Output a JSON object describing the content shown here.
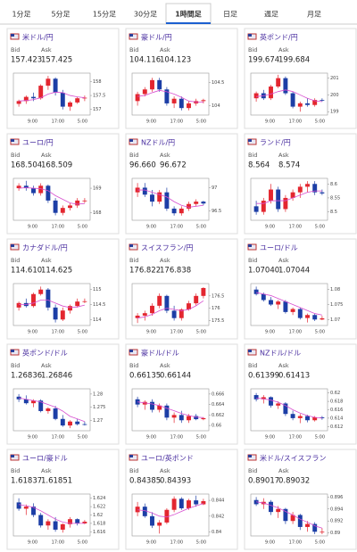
{
  "tabs": [
    "1分足",
    "5分足",
    "15分足",
    "30分足",
    "1時間足",
    "日足",
    "週足",
    "月足"
  ],
  "active_tab": 4,
  "up_color": "#e3262f",
  "down_color": "#1c3ea6",
  "ma_color": "#d84fd0",
  "bid_label": "Bid",
  "ask_label": "Ask",
  "x_labels": [
    "9:00",
    "17:00",
    "5:00"
  ],
  "cards": [
    {
      "name": "米ドル/円",
      "bid": "157.423",
      "ask": "157.425",
      "ylim": [
        156.8,
        158.3
      ],
      "yticks": [
        157,
        157.5,
        158
      ],
      "candles": [
        [
          157.2,
          157.35,
          157.1,
          157.3
        ],
        [
          157.3,
          157.5,
          157.2,
          157.45
        ],
        [
          157.45,
          157.6,
          157.3,
          157.4
        ],
        [
          157.4,
          157.9,
          157.35,
          157.85
        ],
        [
          157.85,
          158.2,
          157.7,
          158.1
        ],
        [
          158.1,
          158.15,
          157.5,
          157.6
        ],
        [
          157.6,
          157.7,
          157.0,
          157.1
        ],
        [
          157.1,
          157.3,
          156.95,
          157.25
        ],
        [
          157.25,
          157.45,
          157.2,
          157.4
        ],
        [
          157.4,
          157.5,
          157.3,
          157.42
        ]
      ],
      "ma": [
        157.3,
        157.32,
        157.35,
        157.42,
        157.55,
        157.62,
        157.6,
        157.5,
        157.45,
        157.42
      ]
    },
    {
      "name": "豪ドル/円",
      "bid": "104.116",
      "ask": "104.123",
      "ylim": [
        103.8,
        104.7
      ],
      "yticks": [
        104,
        104.5
      ],
      "candles": [
        [
          104.1,
          104.3,
          104.0,
          104.25
        ],
        [
          104.25,
          104.4,
          104.2,
          104.35
        ],
        [
          104.35,
          104.6,
          104.3,
          104.55
        ],
        [
          104.55,
          104.6,
          104.3,
          104.35
        ],
        [
          104.35,
          104.4,
          104.0,
          104.05
        ],
        [
          104.05,
          104.2,
          103.95,
          104.15
        ],
        [
          104.15,
          104.2,
          103.9,
          103.95
        ],
        [
          103.95,
          104.1,
          103.9,
          104.05
        ],
        [
          104.05,
          104.15,
          104.0,
          104.1
        ],
        [
          104.1,
          104.15,
          104.05,
          104.12
        ]
      ],
      "ma": [
        104.2,
        104.22,
        104.28,
        104.33,
        104.3,
        104.25,
        104.18,
        104.1,
        104.08,
        104.08
      ]
    },
    {
      "name": "英ポンド/円",
      "bid": "199.674",
      "ask": "199.684",
      "ylim": [
        198.8,
        201.3
      ],
      "yticks": [
        199,
        200,
        201
      ],
      "candles": [
        [
          199.8,
          200.2,
          199.6,
          200.1
        ],
        [
          200.1,
          200.3,
          199.7,
          199.8
        ],
        [
          199.8,
          200.6,
          199.7,
          200.5
        ],
        [
          200.5,
          201.2,
          200.4,
          201.0
        ],
        [
          201.0,
          201.1,
          200.0,
          200.1
        ],
        [
          200.1,
          200.2,
          199.2,
          199.3
        ],
        [
          199.3,
          199.6,
          199.0,
          199.5
        ],
        [
          199.5,
          199.8,
          199.3,
          199.4
        ],
        [
          199.4,
          199.8,
          199.3,
          199.7
        ],
        [
          199.7,
          199.8,
          199.6,
          199.67
        ]
      ],
      "ma": [
        199.9,
        199.95,
        200.05,
        200.2,
        200.3,
        200.2,
        200.0,
        199.8,
        199.65,
        199.6
      ]
    },
    {
      "name": "ユーロ/円",
      "bid": "168.504",
      "ask": "168.509",
      "ylim": [
        167.7,
        169.4
      ],
      "yticks": [
        168,
        169
      ],
      "candles": [
        [
          169.0,
          169.2,
          168.9,
          169.1
        ],
        [
          169.1,
          169.3,
          168.9,
          169.0
        ],
        [
          169.0,
          169.1,
          168.7,
          168.8
        ],
        [
          168.8,
          169.2,
          168.7,
          169.1
        ],
        [
          169.1,
          169.15,
          168.4,
          168.5
        ],
        [
          168.5,
          168.6,
          167.9,
          168.0
        ],
        [
          168.0,
          168.3,
          167.9,
          168.2
        ],
        [
          168.2,
          168.4,
          168.1,
          168.3
        ],
        [
          168.3,
          168.6,
          168.2,
          168.5
        ],
        [
          168.5,
          168.6,
          168.4,
          168.5
        ]
      ],
      "ma": [
        169.0,
        169.02,
        169.0,
        168.98,
        168.9,
        168.7,
        168.55,
        168.4,
        168.35,
        168.38
      ]
    },
    {
      "name": "NZドル/円",
      "bid": "96.660",
      "ask": "96.672",
      "ylim": [
        96.3,
        97.2
      ],
      "yticks": [
        96.5,
        97
      ],
      "candles": [
        [
          96.9,
          97.1,
          96.8,
          97.0
        ],
        [
          97.0,
          97.1,
          96.8,
          96.85
        ],
        [
          96.85,
          96.95,
          96.6,
          96.7
        ],
        [
          96.7,
          96.95,
          96.65,
          96.9
        ],
        [
          96.9,
          97.0,
          96.5,
          96.55
        ],
        [
          96.55,
          96.6,
          96.4,
          96.45
        ],
        [
          96.45,
          96.6,
          96.4,
          96.55
        ],
        [
          96.55,
          96.7,
          96.5,
          96.65
        ],
        [
          96.65,
          96.75,
          96.6,
          96.7
        ],
        [
          96.7,
          96.72,
          96.62,
          96.66
        ]
      ],
      "ma": [
        96.95,
        96.95,
        96.9,
        96.85,
        96.8,
        96.7,
        96.62,
        96.58,
        96.6,
        96.62
      ]
    },
    {
      "name": "ランド/円",
      "bid": "8.564",
      "ask": "8.574",
      "ylim": [
        8.47,
        8.62
      ],
      "yticks": [
        8.5,
        8.55,
        8.6
      ],
      "candles": [
        [
          8.52,
          8.54,
          8.49,
          8.5
        ],
        [
          8.5,
          8.55,
          8.49,
          8.54
        ],
        [
          8.54,
          8.6,
          8.53,
          8.58
        ],
        [
          8.58,
          8.59,
          8.5,
          8.51
        ],
        [
          8.51,
          8.56,
          8.5,
          8.55
        ],
        [
          8.55,
          8.58,
          8.54,
          8.57
        ],
        [
          8.57,
          8.6,
          8.55,
          8.59
        ],
        [
          8.59,
          8.61,
          8.57,
          8.6
        ],
        [
          8.6,
          8.61,
          8.56,
          8.57
        ],
        [
          8.57,
          8.58,
          8.56,
          8.566
        ]
      ],
      "ma": [
        8.53,
        8.53,
        8.54,
        8.54,
        8.54,
        8.55,
        8.56,
        8.57,
        8.575,
        8.575
      ]
    },
    {
      "name": "カナダドル/円",
      "bid": "114.610",
      "ask": "114.625",
      "ylim": [
        113.8,
        115.2
      ],
      "yticks": [
        114,
        114.5,
        115
      ],
      "candles": [
        [
          114.4,
          114.6,
          114.3,
          114.55
        ],
        [
          114.55,
          114.7,
          114.4,
          114.45
        ],
        [
          114.45,
          114.9,
          114.4,
          114.85
        ],
        [
          114.85,
          115.1,
          114.8,
          115.0
        ],
        [
          115.0,
          115.05,
          114.3,
          114.4
        ],
        [
          114.4,
          114.5,
          113.9,
          114.0
        ],
        [
          114.0,
          114.4,
          113.95,
          114.3
        ],
        [
          114.3,
          114.5,
          114.2,
          114.45
        ],
        [
          114.45,
          114.7,
          114.4,
          114.6
        ],
        [
          114.6,
          114.7,
          114.55,
          114.61
        ]
      ],
      "ma": [
        114.5,
        114.5,
        114.55,
        114.65,
        114.65,
        114.55,
        114.45,
        114.4,
        114.42,
        114.48
      ]
    },
    {
      "name": "スイスフラン/円",
      "bid": "176.822",
      "ask": "176.838",
      "ylim": [
        175.3,
        177.0
      ],
      "yticks": [
        175.5,
        176,
        176.5
      ],
      "candles": [
        [
          175.6,
          175.8,
          175.4,
          175.7
        ],
        [
          175.7,
          175.9,
          175.5,
          175.8
        ],
        [
          175.8,
          176.2,
          175.7,
          176.1
        ],
        [
          176.1,
          176.6,
          176.0,
          176.5
        ],
        [
          176.5,
          176.55,
          175.8,
          175.9
        ],
        [
          175.9,
          176.1,
          175.5,
          175.6
        ],
        [
          175.6,
          176.0,
          175.5,
          175.95
        ],
        [
          175.95,
          176.3,
          175.9,
          176.2
        ],
        [
          176.2,
          176.6,
          176.1,
          176.5
        ],
        [
          176.5,
          176.85,
          176.4,
          176.82
        ]
      ],
      "ma": [
        175.6,
        175.65,
        175.75,
        175.9,
        176.0,
        175.95,
        175.9,
        175.95,
        176.1,
        176.3
      ]
    },
    {
      "name": "ユーロ/ドル",
      "bid": "1.07040",
      "ask": "1.07044",
      "ylim": [
        1.068,
        1.082
      ],
      "yticks": [
        1.07,
        1.075,
        1.08
      ],
      "candles": [
        [
          1.08,
          1.081,
          1.078,
          1.0785
        ],
        [
          1.0785,
          1.079,
          1.076,
          1.0765
        ],
        [
          1.0765,
          1.0775,
          1.0745,
          1.075
        ],
        [
          1.075,
          1.0765,
          1.0735,
          1.076
        ],
        [
          1.076,
          1.0765,
          1.072,
          1.0725
        ],
        [
          1.0725,
          1.074,
          1.0715,
          1.0735
        ],
        [
          1.0735,
          1.074,
          1.07,
          1.0705
        ],
        [
          1.0705,
          1.072,
          1.069,
          1.0715
        ],
        [
          1.0715,
          1.072,
          1.0695,
          1.07
        ],
        [
          1.07,
          1.0712,
          1.0698,
          1.0704
        ]
      ],
      "ma": [
        1.079,
        1.0785,
        1.078,
        1.077,
        1.076,
        1.075,
        1.074,
        1.073,
        1.072,
        1.0715
      ]
    },
    {
      "name": "英ポンド/ドル",
      "bid": "1.26836",
      "ask": "1.26846",
      "ylim": [
        1.266,
        1.282
      ],
      "yticks": [
        1.27,
        1.275,
        1.28
      ],
      "candles": [
        [
          1.279,
          1.28,
          1.277,
          1.278
        ],
        [
          1.278,
          1.2795,
          1.276,
          1.2765
        ],
        [
          1.2765,
          1.278,
          1.275,
          1.2775
        ],
        [
          1.2775,
          1.278,
          1.273,
          1.2735
        ],
        [
          1.2735,
          1.275,
          1.2725,
          1.2745
        ],
        [
          1.2745,
          1.2755,
          1.27,
          1.2705
        ],
        [
          1.2705,
          1.272,
          1.2675,
          1.268
        ],
        [
          1.268,
          1.27,
          1.267,
          1.2695
        ],
        [
          1.2695,
          1.2705,
          1.268,
          1.2685
        ],
        [
          1.2685,
          1.2695,
          1.268,
          1.2684
        ]
      ],
      "ma": [
        1.2785,
        1.278,
        1.2775,
        1.277,
        1.276,
        1.275,
        1.2735,
        1.2715,
        1.2705,
        1.2695
      ]
    },
    {
      "name": "豪ドル/ドル",
      "bid": "0.66135",
      "ask": "0.66144",
      "ylim": [
        0.659,
        0.667
      ],
      "yticks": [
        0.66,
        0.662,
        0.664,
        0.666
      ],
      "candles": [
        [
          0.665,
          0.6655,
          0.6635,
          0.664
        ],
        [
          0.664,
          0.6648,
          0.663,
          0.6645
        ],
        [
          0.6645,
          0.665,
          0.6625,
          0.663
        ],
        [
          0.663,
          0.6642,
          0.6625,
          0.6638
        ],
        [
          0.6638,
          0.6642,
          0.661,
          0.6615
        ],
        [
          0.6615,
          0.6625,
          0.6605,
          0.662
        ],
        [
          0.662,
          0.6628,
          0.6605,
          0.661
        ],
        [
          0.661,
          0.6622,
          0.6605,
          0.6618
        ],
        [
          0.6618,
          0.6622,
          0.661,
          0.6612
        ],
        [
          0.6612,
          0.6616,
          0.661,
          0.6614
        ]
      ],
      "ma": [
        0.6645,
        0.6643,
        0.6641,
        0.6638,
        0.6633,
        0.6628,
        0.6623,
        0.6619,
        0.6616,
        0.6615
      ]
    },
    {
      "name": "NZドル/ドル",
      "bid": "0.61399",
      "ask": "0.61413",
      "ylim": [
        0.611,
        0.621
      ],
      "yticks": [
        0.612,
        0.614,
        0.616,
        0.618,
        0.62
      ],
      "candles": [
        [
          0.6195,
          0.62,
          0.618,
          0.6185
        ],
        [
          0.6185,
          0.6195,
          0.6175,
          0.619
        ],
        [
          0.619,
          0.6192,
          0.6165,
          0.617
        ],
        [
          0.617,
          0.618,
          0.6162,
          0.6175
        ],
        [
          0.6175,
          0.6178,
          0.6145,
          0.615
        ],
        [
          0.615,
          0.6158,
          0.6135,
          0.614
        ],
        [
          0.614,
          0.615,
          0.6128,
          0.6145
        ],
        [
          0.6145,
          0.6148,
          0.613,
          0.6135
        ],
        [
          0.6135,
          0.6145,
          0.6132,
          0.6142
        ],
        [
          0.6142,
          0.6145,
          0.6136,
          0.614
        ]
      ],
      "ma": [
        0.6188,
        0.6186,
        0.6183,
        0.6178,
        0.617,
        0.616,
        0.6152,
        0.6146,
        0.6142,
        0.614
      ]
    },
    {
      "name": "ユーロ/豪ドル",
      "bid": "1.61837",
      "ask": "1.61851",
      "ylim": [
        1.615,
        1.625
      ],
      "yticks": [
        1.616,
        1.618,
        1.62,
        1.622,
        1.624
      ],
      "candles": [
        [
          1.623,
          1.624,
          1.621,
          1.6215
        ],
        [
          1.6215,
          1.6225,
          1.62,
          1.622
        ],
        [
          1.622,
          1.6228,
          1.6195,
          1.62
        ],
        [
          1.62,
          1.6205,
          1.617,
          1.6175
        ],
        [
          1.6175,
          1.619,
          1.6165,
          1.6185
        ],
        [
          1.6185,
          1.6195,
          1.616,
          1.6165
        ],
        [
          1.6165,
          1.618,
          1.6158,
          1.6178
        ],
        [
          1.6178,
          1.6195,
          1.617,
          1.619
        ],
        [
          1.619,
          1.6192,
          1.6175,
          1.618
        ],
        [
          1.618,
          1.6188,
          1.6178,
          1.6184
        ]
      ],
      "ma": [
        1.6225,
        1.6222,
        1.6218,
        1.621,
        1.62,
        1.619,
        1.6183,
        1.618,
        1.618,
        1.618
      ]
    },
    {
      "name": "ユーロ/英ポンド",
      "bid": "0.84385",
      "ask": "0.84393",
      "ylim": [
        0.8395,
        0.8448
      ],
      "yticks": [
        0.84,
        0.842,
        0.844
      ],
      "candles": [
        [
          0.8425,
          0.8438,
          0.842,
          0.8432
        ],
        [
          0.8432,
          0.8436,
          0.8418,
          0.842
        ],
        [
          0.842,
          0.8425,
          0.8405,
          0.8408
        ],
        [
          0.8408,
          0.8415,
          0.8398,
          0.8412
        ],
        [
          0.8412,
          0.843,
          0.841,
          0.8428
        ],
        [
          0.8428,
          0.8445,
          0.8425,
          0.8442
        ],
        [
          0.8442,
          0.8444,
          0.8428,
          0.843
        ],
        [
          0.843,
          0.8442,
          0.8428,
          0.844
        ],
        [
          0.844,
          0.8446,
          0.8432,
          0.8435
        ],
        [
          0.8435,
          0.8442,
          0.8434,
          0.8439
        ]
      ],
      "ma": [
        0.8428,
        0.8427,
        0.8424,
        0.842,
        0.8419,
        0.8422,
        0.8426,
        0.843,
        0.8433,
        0.8436
      ]
    },
    {
      "name": "米ドル/スイスフラン",
      "bid": "0.89017",
      "ask": "0.89032",
      "ylim": [
        0.8895,
        0.8965
      ],
      "yticks": [
        0.89,
        0.892,
        0.894,
        0.896
      ],
      "candles": [
        [
          0.8955,
          0.896,
          0.8945,
          0.8948
        ],
        [
          0.8948,
          0.8958,
          0.894,
          0.8952
        ],
        [
          0.8952,
          0.8955,
          0.893,
          0.8935
        ],
        [
          0.8935,
          0.8945,
          0.8925,
          0.894
        ],
        [
          0.894,
          0.8942,
          0.8915,
          0.892
        ],
        [
          0.892,
          0.8935,
          0.8915,
          0.893
        ],
        [
          0.893,
          0.8932,
          0.8905,
          0.891
        ],
        [
          0.891,
          0.892,
          0.8902,
          0.8915
        ],
        [
          0.8915,
          0.8918,
          0.8898,
          0.8902
        ],
        [
          0.8902,
          0.8908,
          0.8898,
          0.8902
        ]
      ],
      "ma": [
        0.8952,
        0.895,
        0.8946,
        0.8942,
        0.8936,
        0.893,
        0.8923,
        0.8918,
        0.8912,
        0.8908
      ]
    }
  ]
}
